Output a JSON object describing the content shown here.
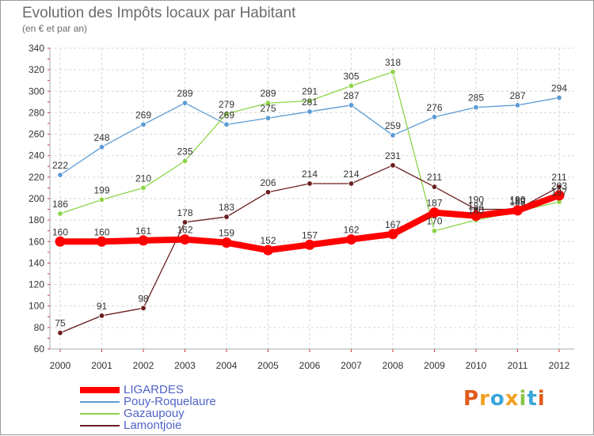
{
  "header": {
    "title": "Evolution des Impôts locaux par Habitant",
    "subtitle": "(en € et par an)"
  },
  "logo": {
    "text": "Proxiti",
    "colors": [
      "#e05a1a",
      "#f0a020",
      "#3aa6d8",
      "#f0a020",
      "#8bc34a",
      "#3aa6d8",
      "#e05a1a"
    ]
  },
  "chart_data": {
    "type": "line",
    "title": "Evolution des Impôts locaux par Habitant",
    "subtitle": "(en € et par an)",
    "xlabel": "",
    "ylabel": "",
    "x": [
      "2000",
      "2001",
      "2002",
      "2003",
      "2004",
      "2005",
      "2006",
      "2007",
      "2008",
      "2009",
      "2010",
      "2011",
      "2012"
    ],
    "ylim": [
      60,
      340
    ],
    "yticks": [
      60,
      80,
      100,
      120,
      140,
      160,
      180,
      200,
      220,
      240,
      260,
      280,
      300,
      320,
      340
    ],
    "grid": true,
    "legend_position": "bottom-left",
    "series": [
      {
        "name": "LIGARDES",
        "color": "#ff0000",
        "values": [
          160,
          160,
          161,
          162,
          159,
          152,
          157,
          162,
          167,
          187,
          184,
          189,
          203
        ],
        "labels": [
          "160",
          "160",
          "161",
          "162",
          "159",
          "152",
          "157",
          "162",
          "167",
          "187",
          "184",
          "189",
          "203"
        ]
      },
      {
        "name": "Pouy-Roquelaure",
        "color": "#5b9bd5",
        "values": [
          222,
          248,
          269,
          289,
          269,
          275,
          281,
          287,
          259,
          276,
          285,
          287,
          294
        ],
        "labels": [
          "222",
          "248",
          "269",
          "289",
          "269",
          "275",
          "281",
          "287",
          "259",
          "276",
          "285",
          "287",
          "294"
        ]
      },
      {
        "name": "Gazaupouy",
        "color": "#8cd446",
        "values": [
          186,
          199,
          210,
          235,
          279,
          289,
          291,
          305,
          318,
          170,
          180,
          188,
          197
        ],
        "labels": [
          "186",
          "199",
          "210",
          "235",
          "279",
          "289",
          "291",
          "305",
          "318",
          "170",
          "180",
          "188",
          "197"
        ]
      },
      {
        "name": "Lamontjoie",
        "color": "#6b1e1e",
        "values": [
          75,
          91,
          98,
          178,
          183,
          206,
          214,
          214,
          231,
          211,
          190,
          190,
          211
        ],
        "labels": [
          "75",
          "91",
          "98",
          "178",
          "183",
          "206",
          "214",
          "214",
          "231",
          "211",
          "190",
          "190",
          "211"
        ]
      }
    ]
  }
}
